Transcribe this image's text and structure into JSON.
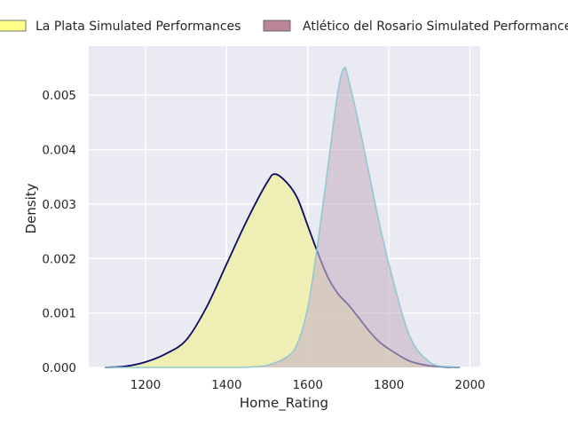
{
  "chart_data": {
    "type": "area",
    "title": "",
    "xlabel": "Home_Rating",
    "ylabel": "Density",
    "xlim": [
      1060,
      2025
    ],
    "ylim": [
      0,
      0.0059
    ],
    "x_ticks": [
      1200,
      1400,
      1600,
      1800,
      2000
    ],
    "x_tick_labels": [
      "1200",
      "1400",
      "1600",
      "1800",
      "2000"
    ],
    "y_ticks": [
      0,
      0.001,
      0.002,
      0.003,
      0.004,
      0.005
    ],
    "y_tick_labels": [
      "0.000",
      "0.001",
      "0.002",
      "0.003",
      "0.004",
      "0.005"
    ],
    "grid": true,
    "legend_position": "top",
    "series": [
      {
        "name": "La Plata Simulated Performances",
        "fill_color": "#f0f0ae",
        "legend_color": "#ffff88",
        "line_color": "#0a0a64",
        "x": [
          1100,
          1150,
          1200,
          1250,
          1300,
          1350,
          1400,
          1450,
          1500,
          1520,
          1550,
          1575,
          1600,
          1625,
          1650,
          1675,
          1700,
          1725,
          1750,
          1775,
          1800,
          1850,
          1900,
          1950,
          1975
        ],
        "y": [
          0,
          2e-05,
          0.0001,
          0.00025,
          0.0005,
          0.0011,
          0.0019,
          0.0027,
          0.0034,
          0.00355,
          0.00338,
          0.0031,
          0.0026,
          0.0021,
          0.00165,
          0.00135,
          0.00115,
          0.00092,
          0.00068,
          0.00048,
          0.00034,
          0.00012,
          3e-05,
          5e-06,
          0
        ]
      },
      {
        "name": "Atlético del Rosario Simulated Performances",
        "fill_color": "#c8b4c8",
        "legend_color": "#b98597",
        "line_color": "#8fc7d2",
        "x": [
          1100,
          1400,
          1450,
          1500,
          1550,
          1575,
          1600,
          1625,
          1650,
          1675,
          1690,
          1700,
          1725,
          1750,
          1775,
          1800,
          1850,
          1900,
          1950,
          1975
        ],
        "y": [
          0,
          0,
          5e-06,
          4e-05,
          0.0002,
          0.00045,
          0.0011,
          0.0023,
          0.0037,
          0.0051,
          0.0055,
          0.0053,
          0.0045,
          0.0036,
          0.0027,
          0.0019,
          0.0006,
          0.0001,
          1e-05,
          0
        ]
      }
    ]
  }
}
